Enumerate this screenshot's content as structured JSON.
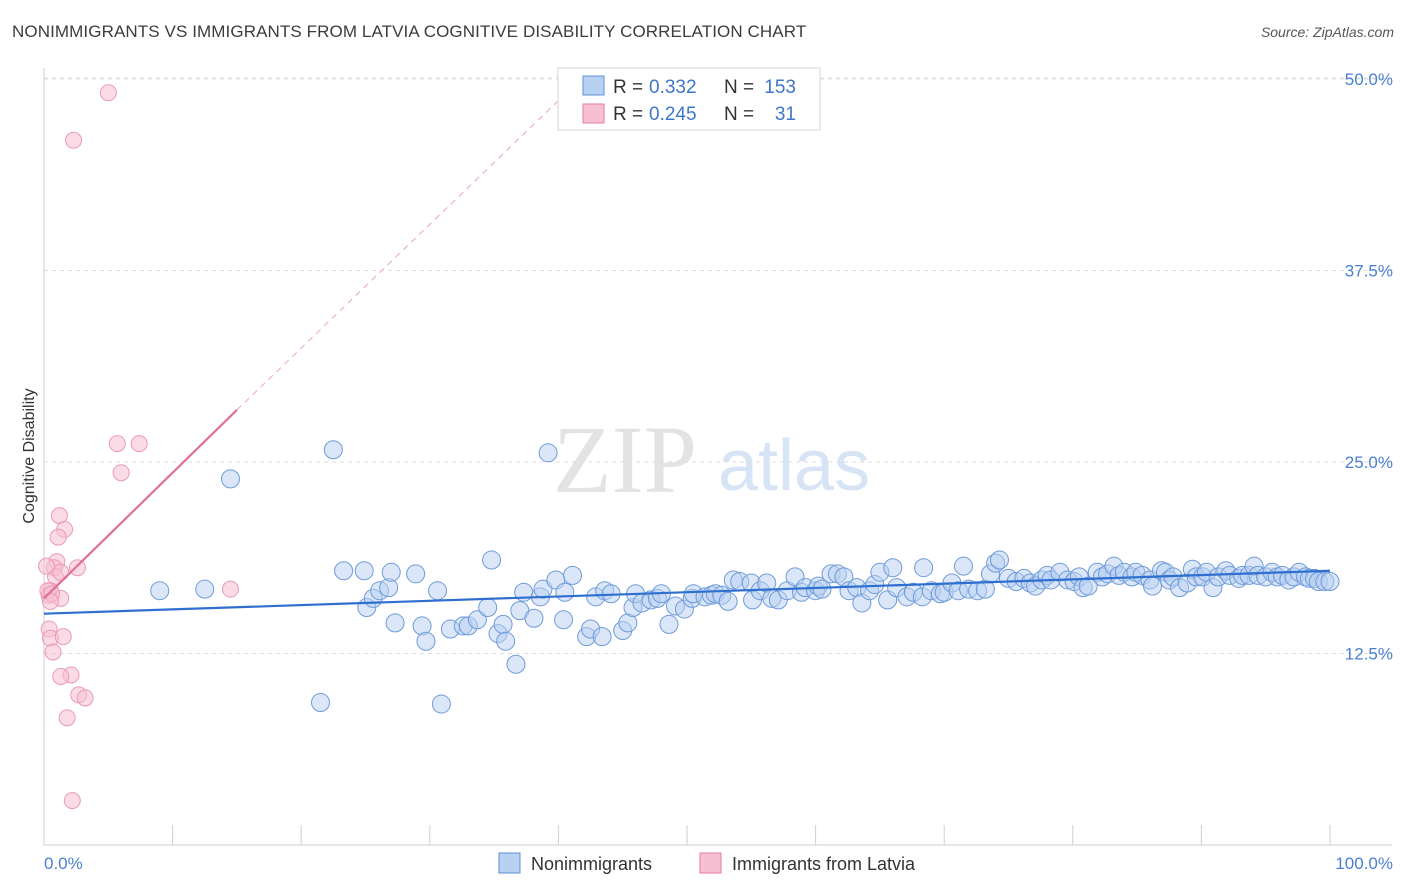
{
  "title": "NONIMMIGRANTS VS IMMIGRANTS FROM LATVIA COGNITIVE DISABILITY CORRELATION CHART",
  "source": "Source: ZipAtlas.com",
  "watermark": {
    "zip": "ZIP",
    "atlas": "atlas"
  },
  "legend_top": {
    "rows": [
      {
        "r_label": "R =",
        "r_value": "0.332",
        "n_label": "N =",
        "n_value": "153"
      },
      {
        "r_label": "R =",
        "r_value": "0.245",
        "n_label": "N =",
        "n_value": "31"
      }
    ]
  },
  "colors": {
    "blue": "#5b8fd6",
    "blue_fill": "#b8d0f2",
    "pink": "#e87aa0",
    "pink_fill": "#f7c0d2",
    "axis_text": "#4a7fcf"
  },
  "chart_data": {
    "type": "scatter",
    "title": "NONIMMIGRANTS VS IMMIGRANTS FROM LATVIA COGNITIVE DISABILITY CORRELATION CHART",
    "xlabel": "",
    "ylabel": "Cognitive Disability",
    "xlim": [
      0,
      100
    ],
    "ylim": [
      0,
      53
    ],
    "x_tick_labels": [
      "0.0%",
      "100.0%"
    ],
    "y_ticks": [
      12.5,
      25.0,
      37.5,
      50.0
    ],
    "y_tick_labels": [
      "12.5%",
      "25.0%",
      "37.5%",
      "50.0%"
    ],
    "legend_placement": "top-center",
    "series": [
      {
        "name": "Nonimmigrants",
        "r": 0.332,
        "n": 153,
        "trend": {
          "x0": 0,
          "y0": 15.1,
          "x1": 100,
          "y1": 17.9
        },
        "points": [
          [
            9,
            16.6
          ],
          [
            12.5,
            16.7
          ],
          [
            14.5,
            23.9
          ],
          [
            21.5,
            9.3
          ],
          [
            22.5,
            25.8
          ],
          [
            23.3,
            17.9
          ],
          [
            24.9,
            17.9
          ],
          [
            25.1,
            15.5
          ],
          [
            25.6,
            16.1
          ],
          [
            26.1,
            16.6
          ],
          [
            26.8,
            16.8
          ],
          [
            27,
            17.8
          ],
          [
            27.3,
            14.5
          ],
          [
            28.9,
            17.7
          ],
          [
            29.4,
            14.3
          ],
          [
            29.7,
            13.3
          ],
          [
            30.6,
            16.6
          ],
          [
            30.9,
            9.2
          ],
          [
            31.6,
            14.1
          ],
          [
            32.6,
            14.3
          ],
          [
            33,
            14.3
          ],
          [
            33.7,
            14.7
          ],
          [
            34.5,
            15.5
          ],
          [
            34.8,
            18.6
          ],
          [
            35.3,
            13.8
          ],
          [
            35.7,
            14.4
          ],
          [
            35.9,
            13.3
          ],
          [
            36.7,
            11.8
          ],
          [
            37,
            15.3
          ],
          [
            37.3,
            16.5
          ],
          [
            38.1,
            14.8
          ],
          [
            38.6,
            16.2
          ],
          [
            38.8,
            16.7
          ],
          [
            39.2,
            25.6
          ],
          [
            39.8,
            17.3
          ],
          [
            40.4,
            14.7
          ],
          [
            40.5,
            16.5
          ],
          [
            41.1,
            17.6
          ],
          [
            42.2,
            13.6
          ],
          [
            42.5,
            14.1
          ],
          [
            42.9,
            16.2
          ],
          [
            43.4,
            13.6
          ],
          [
            43.6,
            16.6
          ],
          [
            44.1,
            16.4
          ],
          [
            45,
            14
          ],
          [
            45.4,
            14.5
          ],
          [
            45.8,
            15.5
          ],
          [
            46,
            16.4
          ],
          [
            46.5,
            15.8
          ],
          [
            47.2,
            16
          ],
          [
            47.7,
            16.1
          ],
          [
            48,
            16.4
          ],
          [
            48.6,
            14.4
          ],
          [
            49.1,
            15.6
          ],
          [
            49.8,
            15.4
          ],
          [
            50.4,
            16.1
          ],
          [
            50.5,
            16.4
          ],
          [
            51.4,
            16.2
          ],
          [
            51.9,
            16.3
          ],
          [
            52.2,
            16.4
          ],
          [
            52.7,
            16.3
          ],
          [
            53.2,
            15.9
          ],
          [
            53.6,
            17.3
          ],
          [
            54.1,
            17.2
          ],
          [
            55,
            17.1
          ],
          [
            55.1,
            16
          ],
          [
            55.7,
            16.6
          ],
          [
            56.2,
            17.1
          ],
          [
            56.6,
            16.1
          ],
          [
            57.1,
            16
          ],
          [
            57.8,
            16.6
          ],
          [
            58.4,
            17.5
          ],
          [
            58.9,
            16.5
          ],
          [
            59.2,
            16.8
          ],
          [
            60,
            16.6
          ],
          [
            60.2,
            16.9
          ],
          [
            60.5,
            16.7
          ],
          [
            61.2,
            17.7
          ],
          [
            61.7,
            17.7
          ],
          [
            62.2,
            17.5
          ],
          [
            62.6,
            16.6
          ],
          [
            63.2,
            16.8
          ],
          [
            63.6,
            15.8
          ],
          [
            64.2,
            16.6
          ],
          [
            64.6,
            17
          ],
          [
            65,
            17.8
          ],
          [
            65.6,
            16
          ],
          [
            66,
            18.1
          ],
          [
            66.3,
            16.8
          ],
          [
            67.1,
            16.2
          ],
          [
            67.6,
            16.5
          ],
          [
            68.3,
            16.2
          ],
          [
            68.4,
            18.1
          ],
          [
            69,
            16.6
          ],
          [
            69.7,
            16.4
          ],
          [
            70,
            16.5
          ],
          [
            70.6,
            17.1
          ],
          [
            71.1,
            16.6
          ],
          [
            71.5,
            18.2
          ],
          [
            71.9,
            16.7
          ],
          [
            72.6,
            16.6
          ],
          [
            73.2,
            16.7
          ],
          [
            73.6,
            17.7
          ],
          [
            74,
            18.4
          ],
          [
            74.3,
            18.6
          ],
          [
            75,
            17.4
          ],
          [
            75.6,
            17.2
          ],
          [
            76.2,
            17.4
          ],
          [
            76.7,
            17.1
          ],
          [
            77.1,
            16.9
          ],
          [
            77.6,
            17.3
          ],
          [
            78,
            17.6
          ],
          [
            78.3,
            17.3
          ],
          [
            79,
            17.8
          ],
          [
            79.6,
            17.3
          ],
          [
            80.1,
            17.2
          ],
          [
            80.5,
            17.5
          ],
          [
            80.8,
            16.8
          ],
          [
            81.2,
            16.9
          ],
          [
            81.9,
            17.8
          ],
          [
            82.3,
            17.5
          ],
          [
            82.7,
            17.7
          ],
          [
            83.2,
            18.2
          ],
          [
            83.6,
            17.6
          ],
          [
            84,
            17.8
          ],
          [
            84.6,
            17.5
          ],
          [
            84.9,
            17.8
          ],
          [
            85.4,
            17.6
          ],
          [
            86,
            17.3
          ],
          [
            86.2,
            16.9
          ],
          [
            86.9,
            17.9
          ],
          [
            87.2,
            17.8
          ],
          [
            87.5,
            17.3
          ],
          [
            87.8,
            17.5
          ],
          [
            88.3,
            16.8
          ],
          [
            88.9,
            17.1
          ],
          [
            89.3,
            18
          ],
          [
            89.6,
            17.5
          ],
          [
            90.1,
            17.5
          ],
          [
            90.4,
            17.8
          ],
          [
            90.9,
            16.8
          ],
          [
            91.3,
            17.5
          ],
          [
            91.9,
            17.9
          ],
          [
            92.2,
            17.6
          ],
          [
            92.9,
            17.4
          ],
          [
            93.2,
            17.6
          ],
          [
            93.7,
            17.6
          ],
          [
            94.1,
            18.2
          ],
          [
            94.4,
            17.6
          ],
          [
            95,
            17.5
          ],
          [
            95.5,
            17.8
          ],
          [
            95.9,
            17.5
          ],
          [
            96.3,
            17.6
          ],
          [
            96.8,
            17.3
          ],
          [
            97.2,
            17.5
          ],
          [
            97.6,
            17.8
          ],
          [
            98.1,
            17.5
          ],
          [
            98.4,
            17.4
          ],
          [
            98.8,
            17.4
          ],
          [
            99.1,
            17.2
          ],
          [
            99.6,
            17.2
          ],
          [
            100,
            17.2
          ]
        ]
      },
      {
        "name": "Immigrants from Latvia",
        "r": 0.245,
        "n": 31,
        "trend": {
          "x0": 0,
          "y0": 16.1,
          "x1": 15,
          "y1": 28.4
        },
        "trend_dashed": {
          "x0": 15,
          "y0": 28.4,
          "x1": 42,
          "y1": 50.2
        },
        "points": [
          [
            5,
            49.1
          ],
          [
            2.3,
            46
          ],
          [
            5.7,
            26.2
          ],
          [
            7.4,
            26.2
          ],
          [
            6,
            24.3
          ],
          [
            1.2,
            21.5
          ],
          [
            1.6,
            20.6
          ],
          [
            1.1,
            20.1
          ],
          [
            1,
            18.5
          ],
          [
            0.8,
            18.1
          ],
          [
            2.6,
            18.1
          ],
          [
            0.9,
            17.5
          ],
          [
            1.3,
            17.8
          ],
          [
            0.5,
            16.6
          ],
          [
            0.4,
            16.3
          ],
          [
            1.3,
            16.1
          ],
          [
            0.3,
            16.6
          ],
          [
            0.6,
            16.4
          ],
          [
            0.5,
            15.9
          ],
          [
            14.5,
            16.7
          ],
          [
            0.4,
            14.1
          ],
          [
            0.5,
            13.5
          ],
          [
            1.5,
            13.6
          ],
          [
            0.7,
            12.6
          ],
          [
            2.1,
            11.1
          ],
          [
            1.3,
            11
          ],
          [
            2.7,
            9.8
          ],
          [
            3.2,
            9.6
          ],
          [
            1.8,
            8.3
          ],
          [
            2.2,
            2.9
          ],
          [
            0.2,
            18.2
          ]
        ]
      }
    ]
  },
  "bottom_legend": [
    {
      "label": "Nonimmigrants"
    },
    {
      "label": "Immigrants from Latvia"
    }
  ]
}
